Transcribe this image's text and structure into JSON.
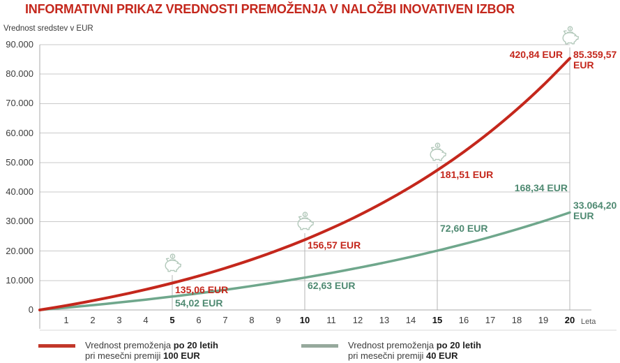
{
  "title": "INFORMATIVNI PRIKAZ VREDNOSTI PREMOŽENJA V NALOŽBI INOVATIVEN IZBOR",
  "y_axis_label": "Vrednost sredstev v EUR",
  "x_axis_unit": "Leta",
  "colors": {
    "red": "#c4271c",
    "green_line": "#6fa78c",
    "green_text": "#4f8a72",
    "legend_red": "#c2372a",
    "legend_green": "#96a99c",
    "grid": "#c9c9c9",
    "axis": "#a9a9a9",
    "marker": "#b5b5b5",
    "bottom_rule": "#d9d9d9",
    "piggy": "#b2c8ba"
  },
  "chart_data": {
    "type": "line",
    "title": "INFORMATIVNI PRIKAZ VREDNOSTI PREMOŽENJA V NALOŽBI INOVATIVEN IZBOR",
    "ylabel": "Vrednost sredstev v EUR",
    "xlabel_unit": "Leta",
    "ylim": [
      0,
      90000
    ],
    "grid": "horizontal",
    "legend_position": "bottom",
    "y_tick_labels": [
      "90.000",
      "80.000",
      "70.000",
      "60.000",
      "50.000",
      "40.000",
      "30.000",
      "20.000",
      "10.000",
      "0"
    ],
    "y_tick_values": [
      90000,
      80000,
      70000,
      60000,
      50000,
      40000,
      30000,
      20000,
      10000,
      0
    ],
    "x_tick_labels": [
      "1",
      "2",
      "3",
      "4",
      "5",
      "6",
      "7",
      "8",
      "9",
      "10",
      "11",
      "12",
      "13",
      "14",
      "15",
      "16",
      "17",
      "18",
      "19",
      "20"
    ],
    "x_bold_ticks": [
      "5",
      "10",
      "15",
      "20"
    ],
    "years": [
      0,
      1,
      2,
      3,
      4,
      5,
      6,
      7,
      8,
      9,
      10,
      11,
      12,
      13,
      14,
      15,
      16,
      17,
      18,
      19,
      20
    ],
    "series": [
      {
        "name": "Vrednost premoženja po 20 letih pri mesečni premiji 100 EUR",
        "color": "#c4271c",
        "values": [
          0,
          1500,
          3140,
          4950,
          6940,
          9130,
          11530,
          14180,
          17090,
          20290,
          23810,
          27680,
          31930,
          36610,
          41750,
          47410,
          53630,
          60470,
          68000,
          76270,
          85360
        ],
        "final_value_label": "85.359,57 EUR"
      },
      {
        "name": "Vrednost premoženja po 20 letih pri mesečni premiji 40 EUR",
        "color": "#6fa78c",
        "values": [
          0,
          790,
          1630,
          2530,
          3500,
          4540,
          5650,
          6840,
          8120,
          9500,
          10970,
          12550,
          14250,
          16060,
          18010,
          20110,
          22350,
          24750,
          27330,
          30100,
          33064
        ],
        "final_value_label": "33.064,20 EUR"
      }
    ],
    "milestones": [
      {
        "year": 5,
        "premium_100_label": "135,06 EUR",
        "premium_40_label": "54,02 EUR"
      },
      {
        "year": 10,
        "premium_100_label": "156,57 EUR",
        "premium_40_label": "62,63 EUR"
      },
      {
        "year": 15,
        "premium_100_label": "181,51 EUR",
        "premium_40_label": "72,60 EUR"
      },
      {
        "year": 20,
        "premium_100_label": "420,84 EUR",
        "premium_40_label": "168,34 EUR",
        "final_100_label": "85.359,57 EUR",
        "final_40_label": "33.064,20 EUR"
      }
    ]
  },
  "legend": [
    {
      "line1_normal": "Vrednost premoženja ",
      "line1_bold": "po 20 letih",
      "line2_normal": "pri mesečni premiji ",
      "line2_bold": "100 EUR"
    },
    {
      "line1_normal": "Vrednost premoženja ",
      "line1_bold": "po 20 letih",
      "line2_normal": "pri mesečni premiji ",
      "line2_bold": "40 EUR"
    }
  ]
}
